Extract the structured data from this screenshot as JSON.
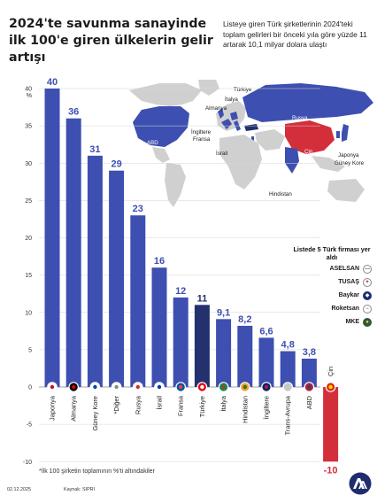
{
  "title": "2024'te savunma sanayinde ilk 100'e giren ülkelerin gelir artışı",
  "subtitle": "Listeye giren Türk şirketlerinin 2024'teki toplam gelirleri bir önceki yıla göre yüzde 11 artarak 10,1 milyar dolara ulaştı",
  "footnote": "*İlk 100 şirketin toplamının %'ti altındakiler",
  "footer": {
    "date": "02.12.2025",
    "source": "Kaynak: SIPRI"
  },
  "legend": {
    "title": "Listede 5 Türk firması yer aldı",
    "firms": [
      "ASELSAN",
      "TUSAŞ",
      "Baykar",
      "Roketsan",
      "MKE"
    ]
  },
  "map_labels": {
    "turkiye": "Türkiye",
    "italya": "İtalya",
    "almanya": "Almanya",
    "rusya": "Rusya",
    "abd": "ABD",
    "ingiltere": "İngiltere",
    "fransa": "Fransa",
    "israil": "İsrail",
    "cin": "Çin",
    "japonya": "Japonya",
    "guney_kore": "Güney Kore",
    "hindistan": "Hindistan"
  },
  "colors": {
    "bar": "#3d4fb0",
    "highlight": "#23316e",
    "negative": "#d32f3a",
    "map_base": "#d0d0d0",
    "map_blue": "#3d4fb0",
    "map_red": "#d32f3a"
  },
  "chart_data": {
    "type": "bar",
    "title": "2024'te savunma sanayinde ilk 100'e giren ülkelerin gelir artışı",
    "xlabel": "",
    "ylabel": "%",
    "ylim": [
      -10,
      40
    ],
    "yticks": [
      -10,
      -5,
      0,
      5,
      10,
      15,
      20,
      25,
      30,
      35,
      40
    ],
    "grid": true,
    "categories": [
      "Japonya",
      "Almanya",
      "Güney Kore",
      "*Diğer",
      "Rusya",
      "İsrail",
      "Fransa",
      "Türkiye",
      "İtalya",
      "Hindistan",
      "İngiltere",
      "Trans-Avrupa",
      "ABD",
      "Çin"
    ],
    "values": [
      40,
      36,
      31,
      29,
      23,
      16,
      12,
      11,
      9.1,
      8.2,
      6.6,
      4.8,
      3.8,
      -10
    ],
    "value_labels": [
      "40",
      "36",
      "31",
      "29",
      "23",
      "16",
      "12",
      "11",
      "9,1",
      "8,2",
      "6,6",
      "4,8",
      "3,8",
      "-10"
    ],
    "highlight": "Türkiye",
    "negative_color_for": "Çin"
  }
}
